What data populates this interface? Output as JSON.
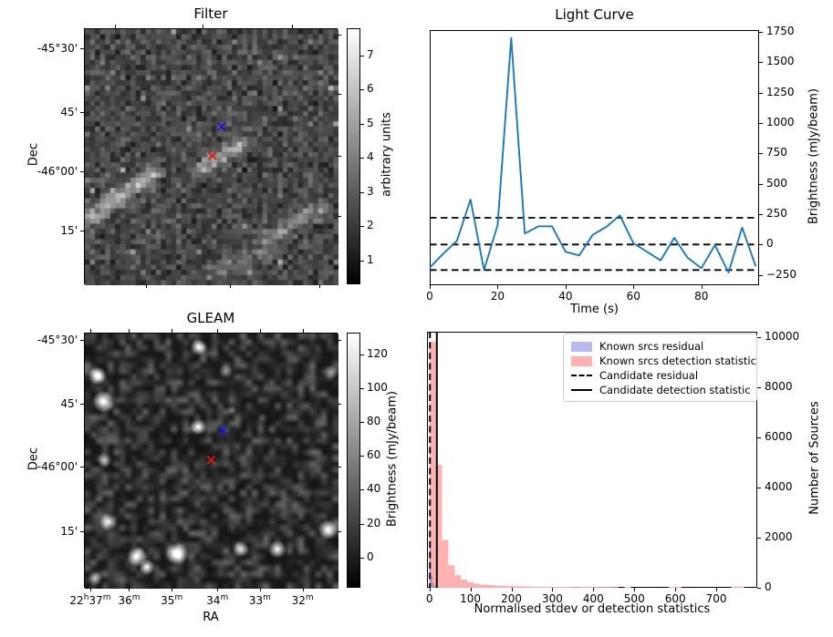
{
  "figure": {
    "bg": "#ffffff"
  },
  "colors": {
    "line_blue": "#1f77b4",
    "marker_blue": "#1414e6",
    "marker_red": "#ea1910",
    "hist_pink": "#ffb1b1",
    "hist_purple_bar": "#5f5ad7",
    "hist_purple_legend": "#b9b9f2",
    "axis": "#000000"
  },
  "chart_data": [
    {
      "id": "filter",
      "type": "heatmap",
      "title": "Filter",
      "ylabel": "Dec",
      "yticks": [
        {
          "label": "-45°30'",
          "f": 0.079
        },
        {
          "label": "45'",
          "f": 0.326
        },
        {
          "label": "-46°00'",
          "f": 0.559
        },
        {
          "label": "15'",
          "f": 0.79
        }
      ],
      "xticks_top": [
        0.124,
        0.466,
        0.82
      ],
      "xticks_bottom": [
        0.243,
        0.574,
        0.929
      ],
      "yticks_right": [
        0.026,
        0.257,
        0.497,
        0.734
      ],
      "colorbar": {
        "label": "arbitrary units",
        "vmin": 0.3,
        "vmax": 7.8,
        "ticks": [
          1,
          2,
          3,
          4,
          5,
          6,
          7
        ]
      },
      "markers": [
        {
          "symbol": "x",
          "color": "blue",
          "fx": 0.543,
          "fy": 0.384
        },
        {
          "symbol": "x",
          "color": "red",
          "fx": 0.507,
          "fy": 0.498
        }
      ],
      "noise": {
        "seed": 11,
        "grid": 50,
        "base": 0.06,
        "spread": 0.45,
        "streaks": [
          [
            0.03,
            0.73,
            0.27,
            0.56,
            0.5
          ],
          [
            0.72,
            0.82,
            0.93,
            0.7,
            0.3
          ],
          [
            0.46,
            0.54,
            0.61,
            0.45,
            0.42
          ],
          [
            0.5,
            0.95,
            0.74,
            0.87,
            0.2
          ]
        ]
      }
    },
    {
      "id": "light_curve",
      "type": "line",
      "title": "Light Curve",
      "xlabel": "Time (s)",
      "ylabel": "Brightness (mJy/beam)",
      "x": [
        0,
        4,
        8,
        12,
        16,
        20,
        24,
        28,
        32,
        36,
        40,
        44,
        48,
        52,
        56,
        60,
        64,
        68,
        72,
        76,
        80,
        84,
        88,
        92,
        96
      ],
      "y": [
        -190,
        -75,
        30,
        370,
        -210,
        160,
        1700,
        90,
        150,
        150,
        -60,
        -90,
        80,
        145,
        240,
        10,
        -60,
        -130,
        55,
        -110,
        -195,
        -5,
        -230,
        140,
        -180
      ],
      "dashed_hlines": [
        220,
        0,
        -210
      ],
      "xlim": [
        0,
        97
      ],
      "ylim": [
        -335,
        1765
      ],
      "xticks": [
        0,
        20,
        40,
        60,
        80
      ],
      "ytick_vals": [
        -250,
        0,
        250,
        500,
        750,
        1000,
        1250,
        1500,
        1750
      ],
      "ytick_labels": [
        "−250",
        "0",
        "250",
        "500",
        "750",
        "1000",
        "1250",
        "1500",
        "1750"
      ]
    },
    {
      "id": "gleam",
      "type": "heatmap",
      "title": "GLEAM",
      "xlabel": "RA",
      "ylabel": "Dec",
      "xticks": [
        {
          "label": "22^h^37^m^",
          "f": 0.025
        },
        {
          "label": "36^m^",
          "f": 0.178
        },
        {
          "label": "35^m^",
          "f": 0.346
        },
        {
          "label": "34^m^",
          "f": 0.526
        },
        {
          "label": "33^m^",
          "f": 0.694
        },
        {
          "label": "32^m^",
          "f": 0.862
        }
      ],
      "yticks": [
        {
          "label": "-45°30'",
          "f": 0.03
        },
        {
          "label": "45'",
          "f": 0.277
        },
        {
          "label": "-46°00'",
          "f": 0.526
        },
        {
          "label": "15'",
          "f": 0.78
        }
      ],
      "colorbar": {
        "label": "Brightness (mJy/beam)",
        "vmin": -18,
        "vmax": 133,
        "ticks": [
          0,
          20,
          40,
          60,
          80,
          100,
          120
        ]
      },
      "markers": [
        {
          "symbol": "x",
          "color": "blue",
          "fx": 0.548,
          "fy": 0.385
        },
        {
          "symbol": "x",
          "color": "red",
          "fx": 0.501,
          "fy": 0.499
        }
      ],
      "blobs": [
        [
          0.05,
          0.166,
          10,
          1.0
        ],
        [
          0.074,
          0.267,
          12,
          1.0
        ],
        [
          0.448,
          0.053,
          9,
          0.9
        ],
        [
          0.556,
          0.148,
          8,
          0.5
        ],
        [
          0.448,
          0.365,
          9,
          0.95
        ],
        [
          0.077,
          0.495,
          8,
          0.7
        ],
        [
          0.095,
          0.738,
          10,
          0.8
        ],
        [
          0.205,
          0.875,
          11,
          0.95
        ],
        [
          0.245,
          0.915,
          9,
          0.9
        ],
        [
          0.363,
          0.863,
          13,
          1.0
        ],
        [
          0.615,
          0.845,
          9,
          0.7
        ],
        [
          0.759,
          0.845,
          10,
          0.95
        ],
        [
          0.957,
          0.768,
          11,
          0.95
        ],
        [
          0.04,
          0.96,
          8,
          0.7
        ],
        [
          0.97,
          0.15,
          8,
          0.45
        ],
        [
          0.58,
          0.3,
          5,
          0.3
        ],
        [
          0.7,
          0.33,
          6,
          0.25
        ]
      ],
      "noise": {
        "seed": 5,
        "grid": 44,
        "max": 0.34
      }
    },
    {
      "id": "hist",
      "type": "bar",
      "xlabel": "Normalised stdev or detection statistics",
      "ylabel": "Number of Sources",
      "xlim": [
        -6,
        800
      ],
      "ylim": [
        0,
        10200
      ],
      "xticks": [
        0,
        100,
        200,
        300,
        400,
        500,
        600,
        700
      ],
      "yticks": [
        0,
        2000,
        4000,
        6000,
        8000,
        10000
      ],
      "series": [
        {
          "name": "Known srcs detection statistic",
          "color_key": "hist_pink",
          "bin_start": 0,
          "bin_width": 15.36,
          "values": [
            9800,
            4900,
            1900,
            900,
            500,
            330,
            220,
            160,
            130,
            110,
            95,
            85,
            75,
            68,
            62,
            56,
            50,
            46,
            42,
            40,
            38,
            35,
            33,
            30,
            35,
            32,
            30,
            28,
            30,
            25,
            0,
            40,
            0,
            0,
            0,
            0,
            0,
            0,
            35,
            40,
            0,
            0,
            0,
            0,
            0,
            0,
            0,
            0,
            45,
            50
          ]
        },
        {
          "name": "Known srcs residual",
          "color_key": "hist_purple_bar",
          "bin_start": 0,
          "bin_width": 3.8,
          "values": [
            1900,
            480,
            180,
            80,
            40,
            20,
            10
          ]
        }
      ],
      "vlines": [
        {
          "name": "Candidate residual",
          "style": "dashed",
          "x": 1.2
        },
        {
          "name": "Candidate detection statistic",
          "style": "solid",
          "x": 18
        }
      ],
      "legend": [
        {
          "label": "Known srcs residual",
          "swatch": "patch",
          "color": "#b9b9f2"
        },
        {
          "label": "Known srcs detection statistic",
          "swatch": "patch",
          "color": "#ffb1b1"
        },
        {
          "label": "Candidate residual",
          "swatch": "dashed"
        },
        {
          "label": "Candidate detection statistic",
          "swatch": "solid"
        }
      ]
    }
  ]
}
